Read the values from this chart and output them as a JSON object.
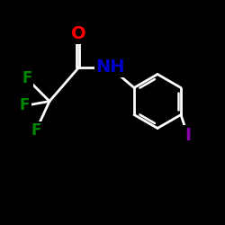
{
  "background": "#000000",
  "bond_color": "#ffffff",
  "atom_colors": {
    "O": "#ff0000",
    "N": "#0000cc",
    "F": "#008800",
    "I": "#8800aa",
    "C": "#ffffff",
    "H": "#ffffff"
  },
  "bond_width": 2.0,
  "font_size_atoms": 14,
  "font_size_small": 12,
  "xlim": [
    0,
    10
  ],
  "ylim": [
    0,
    10
  ]
}
